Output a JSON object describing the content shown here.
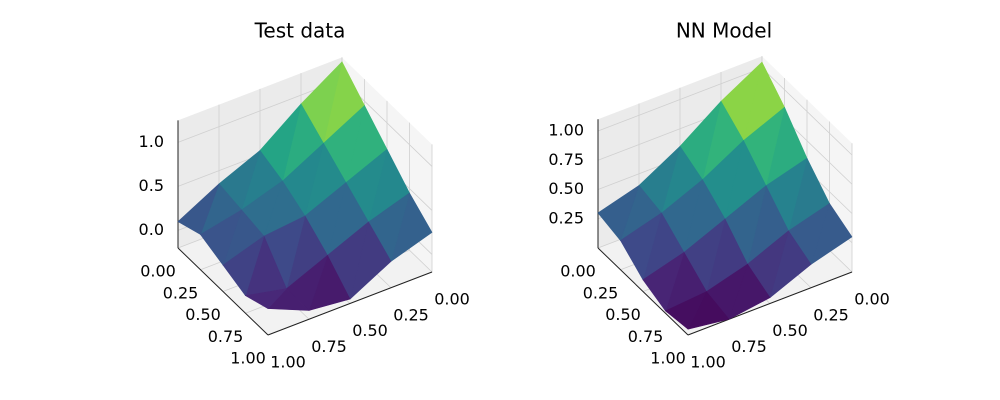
{
  "chart_data": [
    {
      "type": "surface3d",
      "title": "Test data",
      "cmap": "viridis",
      "x": [
        0,
        0.25,
        0.5,
        0.75,
        1
      ],
      "y": [
        0,
        0.25,
        0.5,
        0.75,
        1
      ],
      "z": [
        [
          1.2,
          0.9,
          0.55,
          0.35,
          0.1
        ],
        [
          0.95,
          0.7,
          0.45,
          0.3,
          0.2
        ],
        [
          0.7,
          0.5,
          0.3,
          0.25,
          0.1
        ],
        [
          0.45,
          0.3,
          0.1,
          -0.1,
          0.0
        ],
        [
          0.25,
          0.1,
          -0.15,
          -0.1,
          0.1
        ]
      ],
      "xlim": [
        0,
        1
      ],
      "ylim": [
        0,
        1
      ],
      "zlim": [
        -0.2,
        1.25
      ],
      "xticks": [
        {
          "value": 0,
          "label": "0.00"
        },
        {
          "value": 0.25,
          "label": "0.25"
        },
        {
          "value": 0.5,
          "label": "0.50"
        },
        {
          "value": 0.75,
          "label": "0.75"
        },
        {
          "value": 1,
          "label": "1.00"
        }
      ],
      "yticks": [
        {
          "value": 0,
          "label": "0.00"
        },
        {
          "value": 0.25,
          "label": "0.25"
        },
        {
          "value": 0.5,
          "label": "0.50"
        },
        {
          "value": 0.75,
          "label": "0.75"
        },
        {
          "value": 1,
          "label": "1.00"
        }
      ],
      "zticks": [
        {
          "value": 0,
          "label": "0.0"
        },
        {
          "value": 0.5,
          "label": "0.5"
        },
        {
          "value": 1,
          "label": "1.0"
        }
      ]
    },
    {
      "type": "surface3d",
      "title": "NN Model",
      "cmap": "viridis",
      "x": [
        0,
        0.25,
        0.5,
        0.75,
        1
      ],
      "y": [
        0,
        0.25,
        0.5,
        0.75,
        1
      ],
      "z": [
        [
          1.05,
          0.85,
          0.6,
          0.4,
          0.3
        ],
        [
          0.85,
          0.7,
          0.5,
          0.35,
          0.25
        ],
        [
          0.6,
          0.5,
          0.35,
          0.2,
          0.1
        ],
        [
          0.4,
          0.3,
          0.15,
          0.05,
          0.02
        ],
        [
          0.3,
          0.2,
          0.05,
          0.0,
          0.05
        ]
      ],
      "xlim": [
        0,
        1
      ],
      "ylim": [
        0,
        1
      ],
      "zlim": [
        0,
        1.1
      ],
      "xticks": [
        {
          "value": 0,
          "label": "0.00"
        },
        {
          "value": 0.25,
          "label": "0.25"
        },
        {
          "value": 0.5,
          "label": "0.50"
        },
        {
          "value": 0.75,
          "label": "0.75"
        },
        {
          "value": 1,
          "label": "1.00"
        }
      ],
      "yticks": [
        {
          "value": 0,
          "label": "0.00"
        },
        {
          "value": 0.25,
          "label": "0.25"
        },
        {
          "value": 0.5,
          "label": "0.50"
        },
        {
          "value": 0.75,
          "label": "0.75"
        },
        {
          "value": 1,
          "label": "1.00"
        }
      ],
      "zticks": [
        {
          "value": 0.25,
          "label": "0.25"
        },
        {
          "value": 0.5,
          "label": "0.50"
        },
        {
          "value": 0.75,
          "label": "0.75"
        },
        {
          "value": 1,
          "label": "1.00"
        }
      ]
    }
  ]
}
